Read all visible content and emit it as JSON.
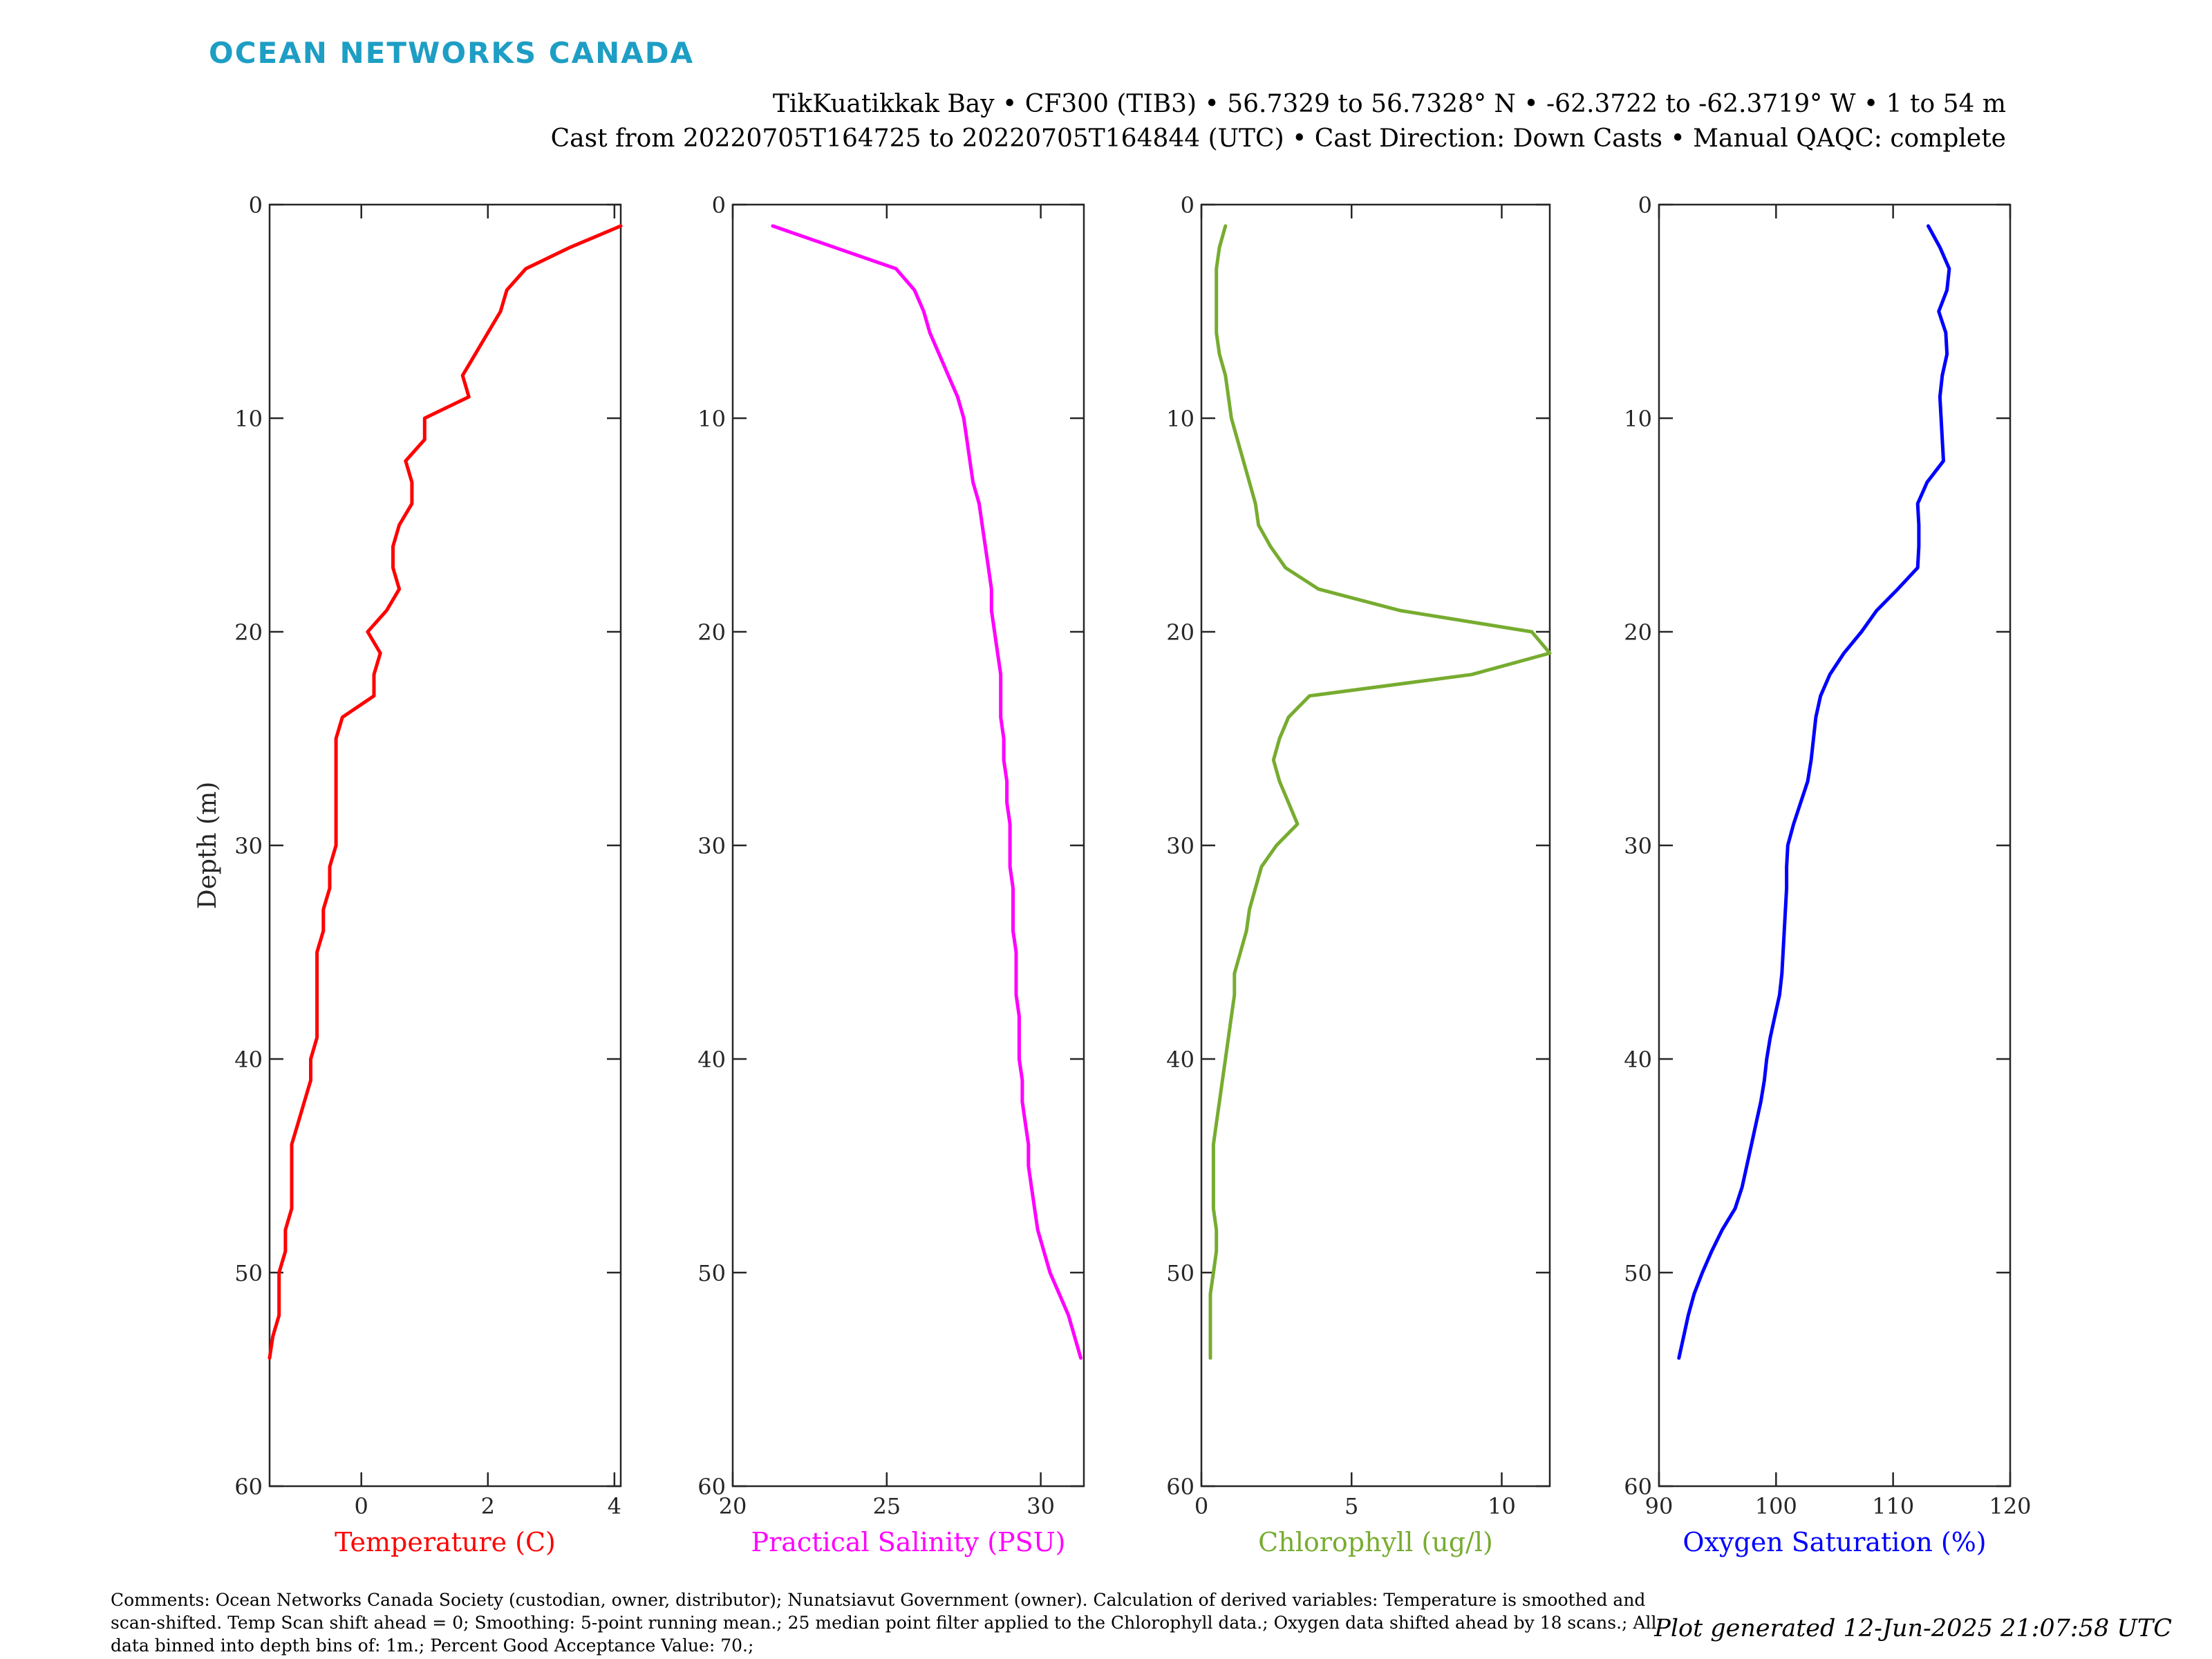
{
  "brand": {
    "name": "OCEAN NETWORKS CANADA"
  },
  "header": {
    "line1": "TikKuatikkak Bay • CF300 (TIB3) • 56.7329 to 56.7328° N • -62.3722 to -62.3719° W • 1 to 54 m",
    "line2": "Cast from 20220705T164725 to 20220705T164844 (UTC) • Cast Direction: Down Casts • Manual QAQC: complete"
  },
  "footer": {
    "comments": "Comments: Ocean Networks Canada Society (custodian, owner, distributor); Nunatsiavut Government (owner). Calculation of derived variables: Temperature is smoothed and scan-shifted. Temp Scan shift ahead = 0; Smoothing: 5-point running mean.; 25 median point filter applied to the Chlorophyll data.; Oxygen data shifted ahead by 18 scans.; All data binned into depth bins of: 1m.; Percent Good Acceptance Value: 70.;",
    "generated": "Plot generated 12-Jun-2025 21:07:58 UTC"
  },
  "chart_data": [
    {
      "type": "line",
      "series_name": "Temperature",
      "xlabel": "Temperature (C)",
      "ylabel": "Depth (m)",
      "color": "#ff0000",
      "xlim": [
        -1.45,
        4.1
      ],
      "ylim": [
        0,
        60
      ],
      "y_reversed": true,
      "xticks": [
        0,
        2,
        4
      ],
      "yticks": [
        0,
        10,
        20,
        30,
        40,
        50,
        60
      ],
      "x": [
        4.1,
        3.3,
        2.6,
        2.3,
        2.2,
        2.0,
        1.8,
        1.6,
        1.7,
        1.0,
        1.0,
        0.7,
        0.8,
        0.8,
        0.6,
        0.5,
        0.5,
        0.6,
        0.4,
        0.1,
        0.3,
        0.2,
        0.2,
        -0.3,
        -0.4,
        -0.4,
        -0.4,
        -0.4,
        -0.4,
        -0.4,
        -0.5,
        -0.5,
        -0.6,
        -0.6,
        -0.7,
        -0.7,
        -0.7,
        -0.7,
        -0.7,
        -0.8,
        -0.8,
        -0.9,
        -1.0,
        -1.1,
        -1.1,
        -1.1,
        -1.1,
        -1.2,
        -1.2,
        -1.3,
        -1.3,
        -1.3,
        -1.4,
        -1.45
      ],
      "y": [
        1,
        2,
        3,
        4,
        5,
        6,
        7,
        8,
        9,
        10,
        11,
        12,
        13,
        14,
        15,
        16,
        17,
        18,
        19,
        20,
        21,
        22,
        23,
        24,
        25,
        26,
        27,
        28,
        29,
        30,
        31,
        32,
        33,
        34,
        35,
        36,
        37,
        38,
        39,
        40,
        41,
        42,
        43,
        44,
        45,
        46,
        47,
        48,
        49,
        50,
        51,
        52,
        53,
        54
      ]
    },
    {
      "type": "line",
      "series_name": "Practical Salinity",
      "xlabel": "Practical Salinity (PSU)",
      "ylabel": "",
      "color": "#ff00ff",
      "xlim": [
        20,
        31.4
      ],
      "ylim": [
        0,
        60
      ],
      "y_reversed": true,
      "xticks": [
        20,
        25,
        30
      ],
      "yticks": [
        0,
        10,
        20,
        30,
        40,
        50,
        60
      ],
      "x": [
        21.3,
        23.3,
        25.3,
        25.9,
        26.2,
        26.4,
        26.7,
        27.0,
        27.3,
        27.5,
        27.6,
        27.7,
        27.8,
        28.0,
        28.1,
        28.2,
        28.3,
        28.4,
        28.4,
        28.5,
        28.6,
        28.7,
        28.7,
        28.7,
        28.8,
        28.8,
        28.9,
        28.9,
        29.0,
        29.0,
        29.0,
        29.1,
        29.1,
        29.1,
        29.2,
        29.2,
        29.2,
        29.3,
        29.3,
        29.3,
        29.4,
        29.4,
        29.5,
        29.6,
        29.6,
        29.7,
        29.8,
        29.9,
        30.1,
        30.3,
        30.6,
        30.9,
        31.1,
        31.3
      ],
      "y": [
        1,
        2,
        3,
        4,
        5,
        6,
        7,
        8,
        9,
        10,
        11,
        12,
        13,
        14,
        15,
        16,
        17,
        18,
        19,
        20,
        21,
        22,
        23,
        24,
        25,
        26,
        27,
        28,
        29,
        30,
        31,
        32,
        33,
        34,
        35,
        36,
        37,
        38,
        39,
        40,
        41,
        42,
        43,
        44,
        45,
        46,
        47,
        48,
        49,
        50,
        51,
        52,
        53,
        54
      ]
    },
    {
      "type": "line",
      "series_name": "Chlorophyll",
      "xlabel": "Chlorophyll (ug/l)",
      "ylabel": "",
      "color": "#77ac30",
      "xlim": [
        0,
        11.6
      ],
      "ylim": [
        0,
        60
      ],
      "y_reversed": true,
      "xticks": [
        0,
        5,
        10
      ],
      "yticks": [
        0,
        10,
        20,
        30,
        40,
        50,
        60
      ],
      "x": [
        0.8,
        0.6,
        0.5,
        0.5,
        0.5,
        0.5,
        0.6,
        0.8,
        0.9,
        1.0,
        1.2,
        1.4,
        1.6,
        1.8,
        1.9,
        2.3,
        2.8,
        3.9,
        6.6,
        11.0,
        11.6,
        9.0,
        3.6,
        2.9,
        2.6,
        2.4,
        2.6,
        2.9,
        3.2,
        2.5,
        2.0,
        1.8,
        1.6,
        1.5,
        1.3,
        1.1,
        1.1,
        1.0,
        0.9,
        0.8,
        0.7,
        0.6,
        0.5,
        0.4,
        0.4,
        0.4,
        0.4,
        0.5,
        0.5,
        0.4,
        0.3,
        0.3,
        0.3,
        0.3
      ],
      "y": [
        1,
        2,
        3,
        4,
        5,
        6,
        7,
        8,
        9,
        10,
        11,
        12,
        13,
        14,
        15,
        16,
        17,
        18,
        19,
        20,
        21,
        22,
        23,
        24,
        25,
        26,
        27,
        28,
        29,
        30,
        31,
        32,
        33,
        34,
        35,
        36,
        37,
        38,
        39,
        40,
        41,
        42,
        43,
        44,
        45,
        46,
        47,
        48,
        49,
        50,
        51,
        52,
        53,
        54
      ]
    },
    {
      "type": "line",
      "series_name": "Oxygen Saturation",
      "xlabel": "Oxygen Saturation (%)",
      "ylabel": "",
      "color": "#0000ff",
      "xlim": [
        90,
        120
      ],
      "ylim": [
        0,
        60
      ],
      "y_reversed": true,
      "xticks": [
        90,
        100,
        110,
        120
      ],
      "yticks": [
        0,
        10,
        20,
        30,
        40,
        50,
        60
      ],
      "x": [
        113.0,
        114.0,
        114.8,
        114.6,
        113.9,
        114.5,
        114.6,
        114.2,
        114.0,
        114.1,
        114.2,
        114.3,
        112.9,
        112.1,
        112.2,
        112.2,
        112.1,
        110.4,
        108.6,
        107.3,
        105.8,
        104.6,
        103.8,
        103.4,
        103.2,
        103.0,
        102.7,
        102.1,
        101.5,
        101.0,
        100.9,
        100.9,
        100.8,
        100.7,
        100.6,
        100.5,
        100.3,
        99.9,
        99.5,
        99.2,
        99.0,
        98.7,
        98.3,
        97.9,
        97.5,
        97.1,
        96.5,
        95.4,
        94.5,
        93.7,
        93.0,
        92.5,
        92.1,
        91.7
      ],
      "y": [
        1,
        2,
        3,
        4,
        5,
        6,
        7,
        8,
        9,
        10,
        11,
        12,
        13,
        14,
        15,
        16,
        17,
        18,
        19,
        20,
        21,
        22,
        23,
        24,
        25,
        26,
        27,
        28,
        29,
        30,
        31,
        32,
        33,
        34,
        35,
        36,
        37,
        38,
        39,
        40,
        41,
        42,
        43,
        44,
        45,
        46,
        47,
        48,
        49,
        50,
        51,
        52,
        53,
        54
      ]
    }
  ]
}
